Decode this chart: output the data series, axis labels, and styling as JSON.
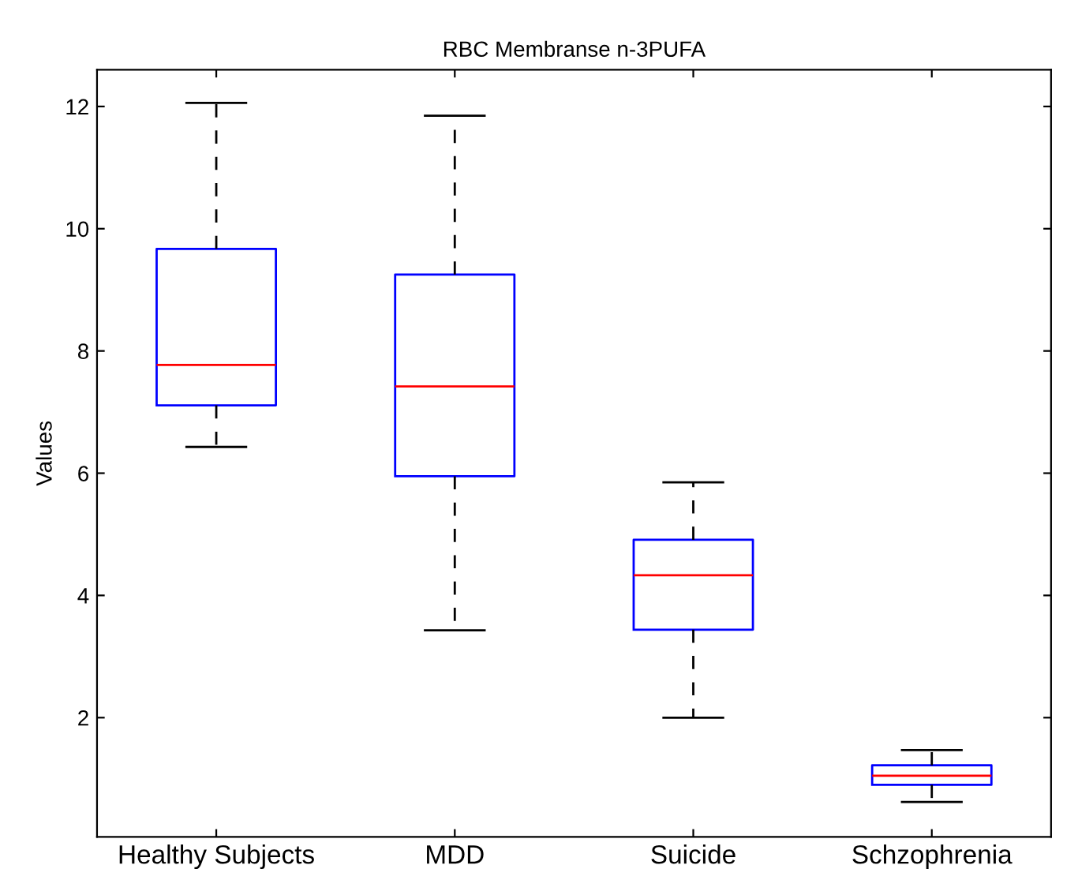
{
  "chart_data": {
    "type": "box",
    "title": "RBC Membranse n-3PUFA",
    "ylabel": "Values",
    "categories": [
      "Healthy Subjects",
      "MDD",
      "Suicide",
      "Schzophrenia"
    ],
    "boxes": [
      {
        "low": 6.43,
        "q1": 7.11,
        "median": 7.77,
        "q3": 9.67,
        "high": 12.06
      },
      {
        "low": 3.43,
        "q1": 5.95,
        "median": 7.42,
        "q3": 9.25,
        "high": 11.85
      },
      {
        "low": 2.0,
        "q1": 3.44,
        "median": 4.33,
        "q3": 4.91,
        "high": 5.85
      },
      {
        "low": 0.62,
        "q1": 0.9,
        "median": 1.05,
        "q3": 1.22,
        "high": 1.47
      }
    ],
    "color": "#0000ff",
    "ylim": [
      0.05,
      12.6
    ],
    "yticks": [
      2,
      4,
      6,
      8,
      10,
      12
    ],
    "grid": false,
    "line_style": "dashed"
  }
}
